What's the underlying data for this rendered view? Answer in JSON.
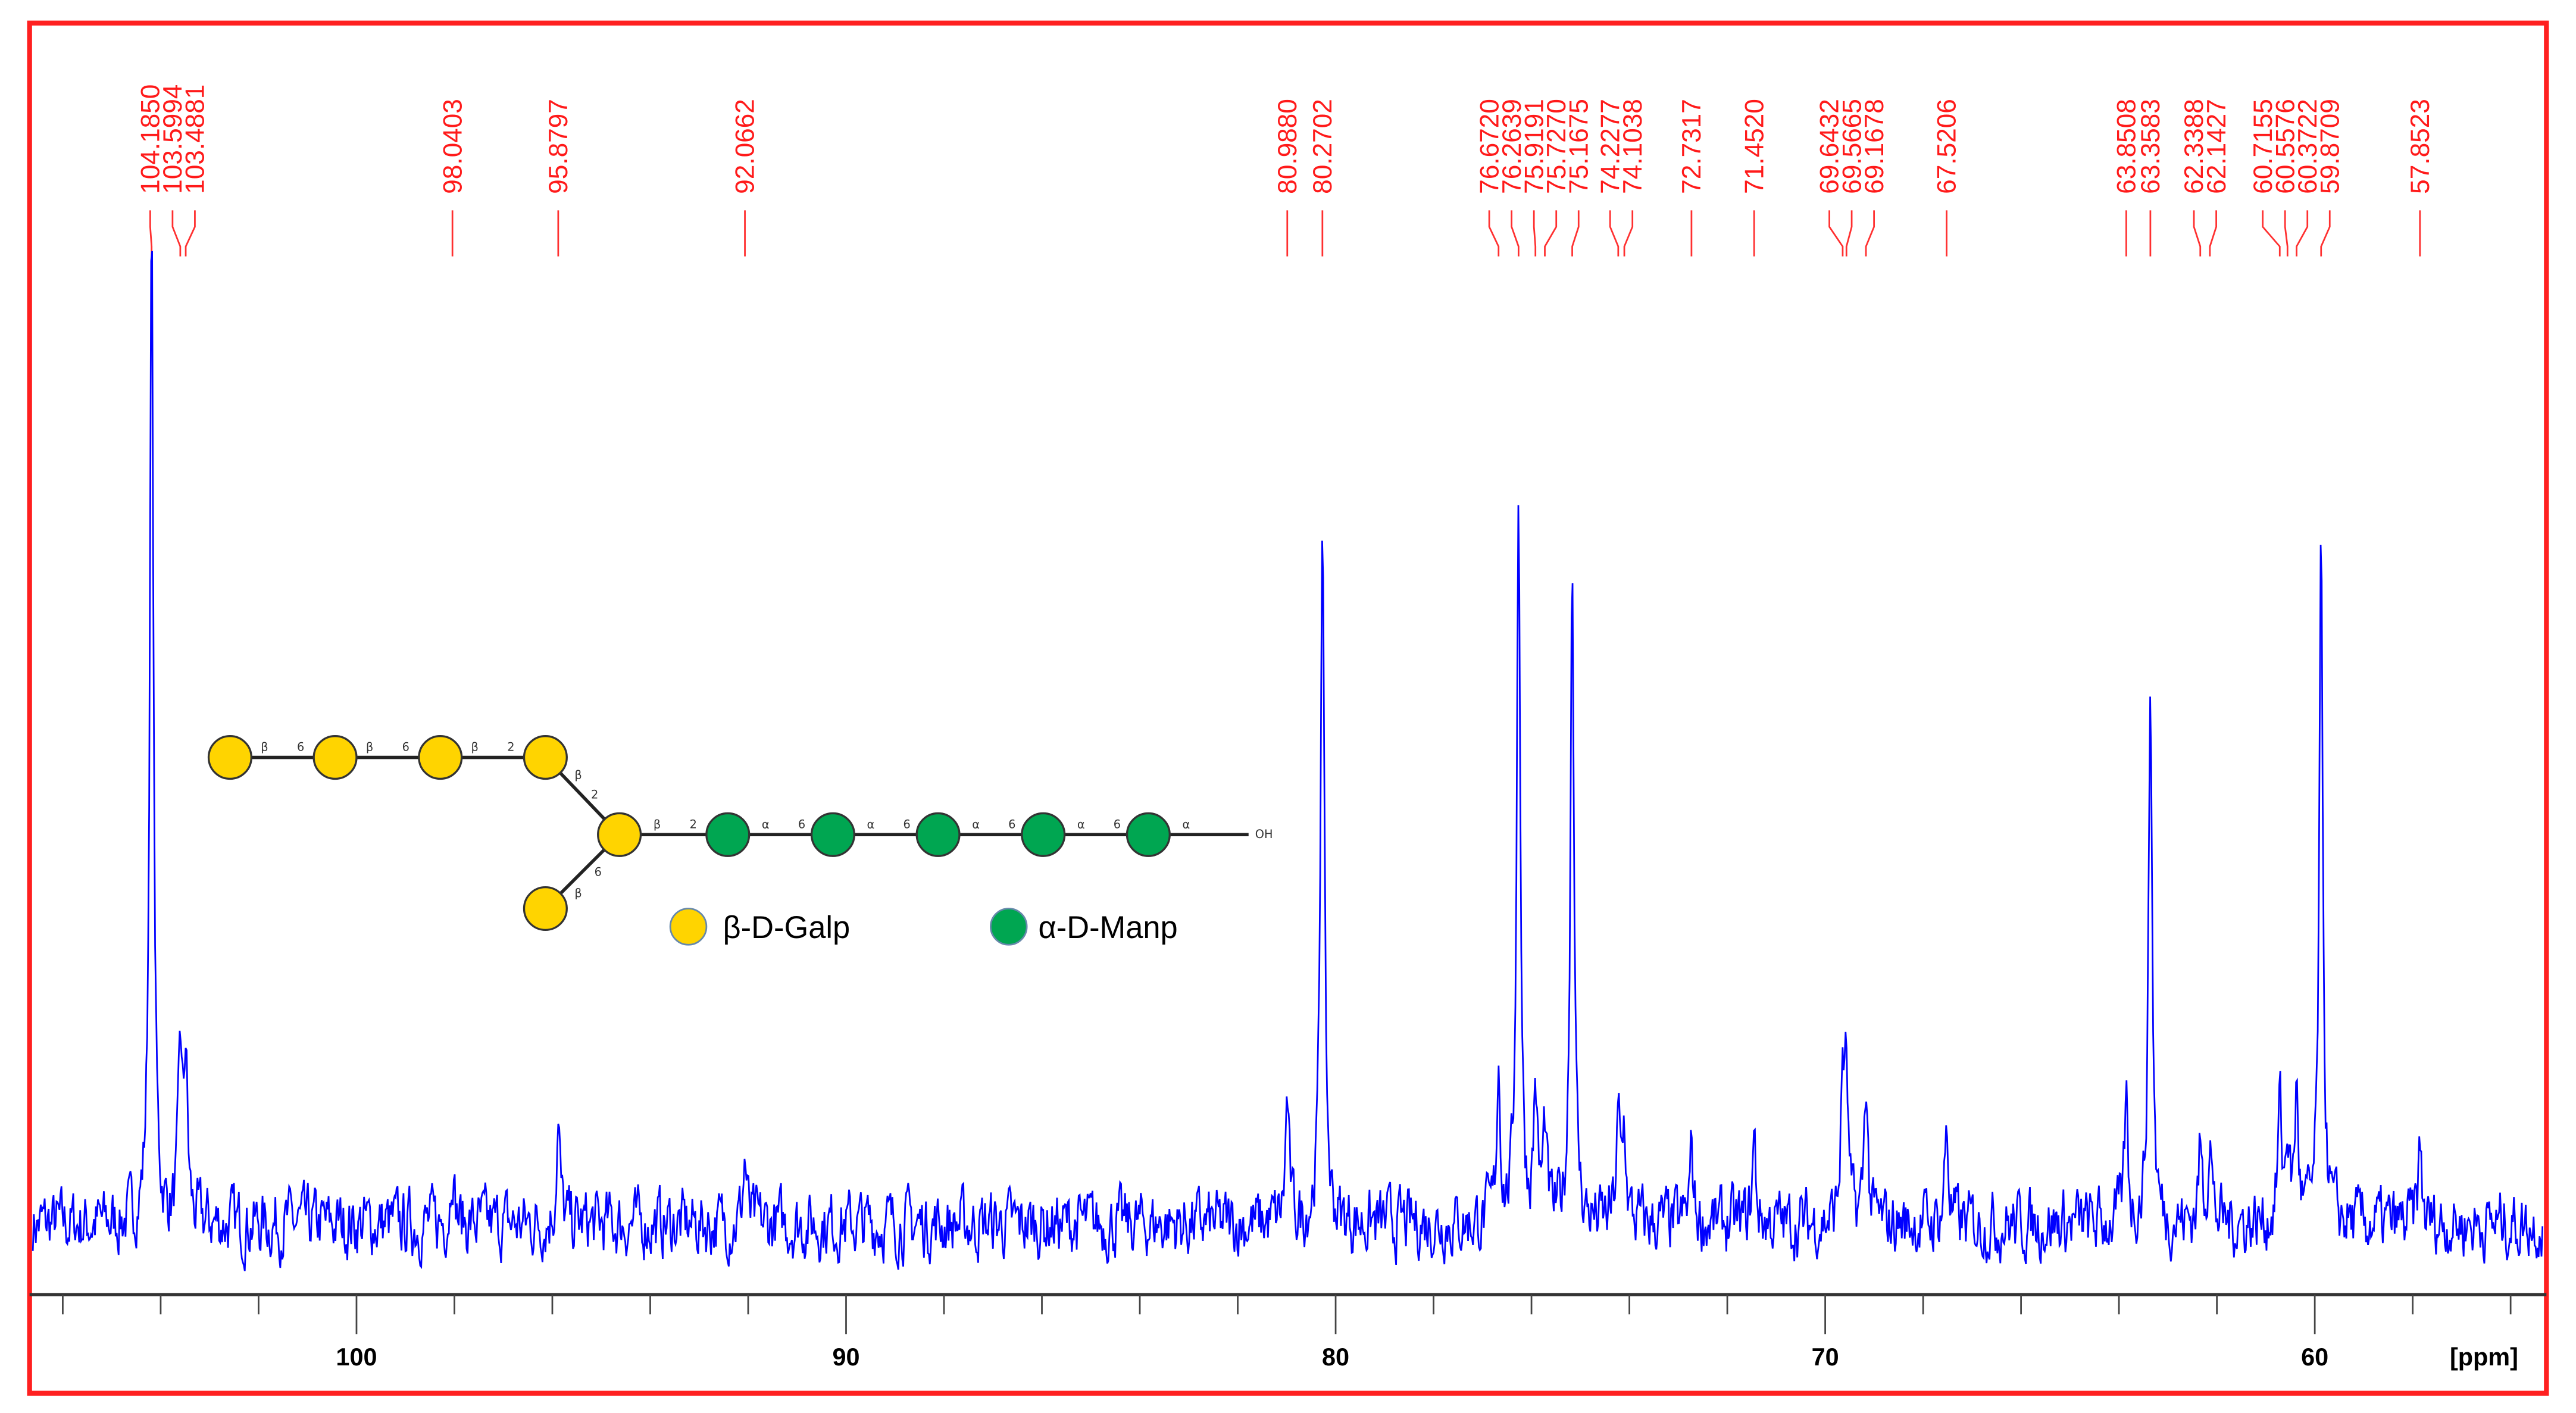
{
  "chart_data": {
    "type": "line",
    "title": "",
    "xlabel": "[ppm]",
    "ylabel": "",
    "xlim": [
      106.7,
      55.3
    ],
    "x_reversed": true,
    "x_ticks": [
      100,
      90,
      80,
      70,
      60
    ],
    "x_tick_labels": [
      "100",
      "90",
      "80",
      "70",
      "60"
    ],
    "minor_tick_step": 2,
    "grid": false,
    "colors": {
      "spectrum": "#0000ff",
      "peak_labels": "#ff0000",
      "frame": "#ff2020",
      "axis": "#000000"
    },
    "peak_labels": [
      "104.1850",
      "103.5994",
      "103.4881",
      "98.0403",
      "95.8797",
      "92.0662",
      "80.9880",
      "80.2702",
      "76.6720",
      "76.2639",
      "75.9191",
      "75.7270",
      "75.1675",
      "74.2277",
      "74.1038",
      "72.7317",
      "71.4520",
      "69.6432",
      "69.5665",
      "69.1678",
      "67.5206",
      "63.8508",
      "63.3583",
      "62.3388",
      "62.1427",
      "60.7155",
      "60.5576",
      "60.3722",
      "59.8709",
      "57.8523"
    ],
    "peaks": [
      {
        "ppm": 104.185,
        "intensity": 100
      },
      {
        "ppm": 103.5994,
        "intensity": 16.5
      },
      {
        "ppm": 103.4881,
        "intensity": 16
      },
      {
        "ppm": 98.0403,
        "intensity": 6.6
      },
      {
        "ppm": 95.8797,
        "intensity": 10
      },
      {
        "ppm": 92.0662,
        "intensity": 6.6
      },
      {
        "ppm": 80.988,
        "intensity": 12.4
      },
      {
        "ppm": 80.2702,
        "intensity": 72.7
      },
      {
        "ppm": 76.672,
        "intensity": 15.7
      },
      {
        "ppm": 76.2639,
        "intensity": 72.7
      },
      {
        "ppm": 75.9191,
        "intensity": 13
      },
      {
        "ppm": 75.727,
        "intensity": 9
      },
      {
        "ppm": 75.1675,
        "intensity": 67
      },
      {
        "ppm": 74.2277,
        "intensity": 9.9
      },
      {
        "ppm": 74.1038,
        "intensity": 9
      },
      {
        "ppm": 72.7317,
        "intensity": 7.4
      },
      {
        "ppm": 71.452,
        "intensity": 8.3
      },
      {
        "ppm": 69.6432,
        "intensity": 14
      },
      {
        "ppm": 69.5665,
        "intensity": 13
      },
      {
        "ppm": 69.1678,
        "intensity": 14.4
      },
      {
        "ppm": 67.5206,
        "intensity": 9.9
      },
      {
        "ppm": 63.8508,
        "intensity": 12
      },
      {
        "ppm": 63.3583,
        "intensity": 53.7
      },
      {
        "ppm": 62.3388,
        "intensity": 7.4
      },
      {
        "ppm": 62.1427,
        "intensity": 9.4
      },
      {
        "ppm": 60.7155,
        "intensity": 11.6
      },
      {
        "ppm": 60.5576,
        "intensity": 8.3
      },
      {
        "ppm": 60.3722,
        "intensity": 12.8
      },
      {
        "ppm": 59.8709,
        "intensity": 66
      },
      {
        "ppm": 57.8523,
        "intensity": 7.4
      }
    ]
  },
  "structure": {
    "top_linkages": [
      [
        "β",
        "6"
      ],
      [
        "β",
        "6"
      ],
      [
        "β",
        "2"
      ]
    ],
    "branch_upper_linkage": [
      "β",
      "2"
    ],
    "branch_lower_linkage": [
      "β",
      "6"
    ],
    "main_linkages": [
      [
        "β",
        "2"
      ],
      [
        "α",
        "6"
      ],
      [
        "α",
        "6"
      ],
      [
        "α",
        "6"
      ],
      [
        "α",
        "6"
      ],
      [
        "α",
        ""
      ]
    ],
    "reducing_end": "OH",
    "gal_color": "#ffd400",
    "man_color": "#00a651",
    "legend": {
      "gal": "β-D-Galp",
      "man": "α-D-Manp"
    }
  }
}
